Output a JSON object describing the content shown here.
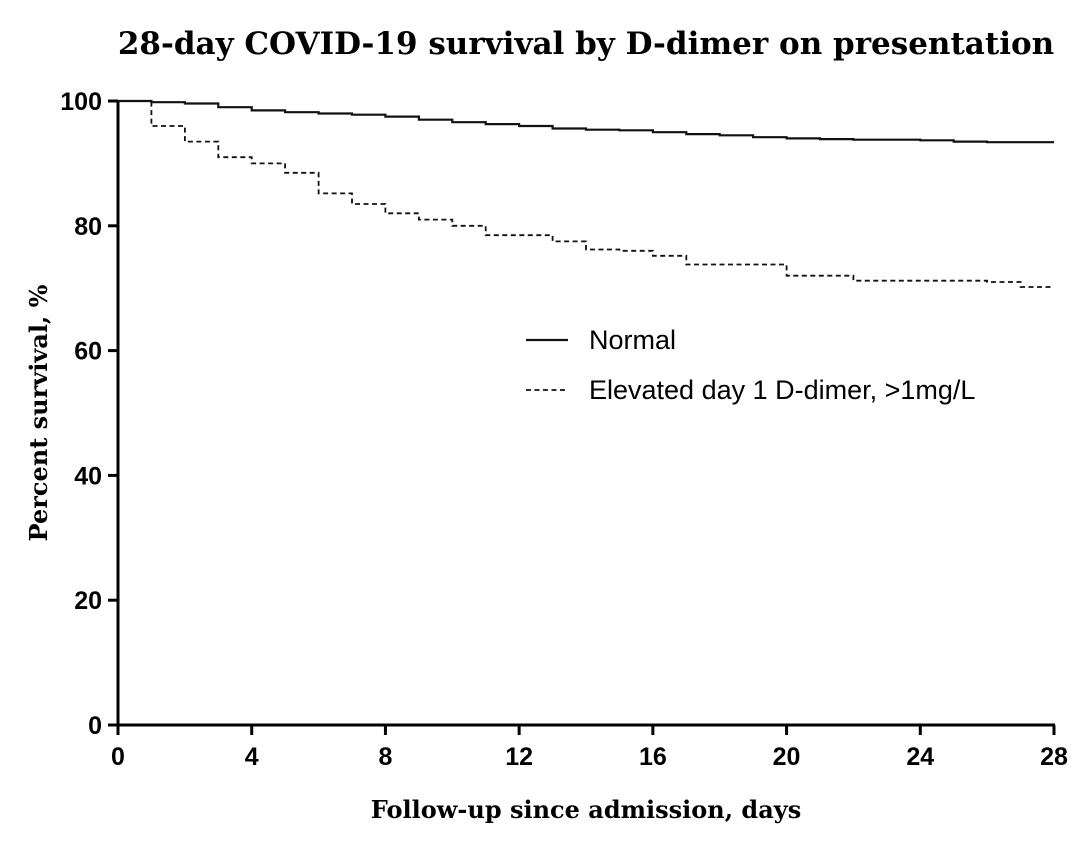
{
  "chart_data": {
    "type": "line",
    "subtype": "kaplan-meier-step",
    "title": "28-day COVID-19 survival by D-dimer on presentation",
    "xlabel": "Follow-up since admission, days",
    "ylabel": "Percent survival, %",
    "xlim": [
      0,
      28
    ],
    "ylim": [
      0,
      100
    ],
    "x_ticks": [
      0,
      4,
      8,
      12,
      16,
      20,
      24,
      28
    ],
    "y_ticks": [
      0,
      20,
      40,
      60,
      80,
      100
    ],
    "grid": false,
    "legend_position": "center-right",
    "series": [
      {
        "name": "Normal",
        "line_style": "solid",
        "color": "#111111",
        "x": [
          0,
          1,
          2,
          3,
          4,
          5,
          6,
          7,
          8,
          9,
          10,
          11,
          12,
          13,
          14,
          15,
          16,
          17,
          18,
          19,
          20,
          21,
          22,
          23,
          24,
          25,
          26,
          27,
          28
        ],
        "y": [
          100,
          99.8,
          99.6,
          99.0,
          98.5,
          98.2,
          98.0,
          97.8,
          97.5,
          97.0,
          96.6,
          96.3,
          96.0,
          95.6,
          95.4,
          95.3,
          95.0,
          94.7,
          94.5,
          94.2,
          94.0,
          93.9,
          93.8,
          93.8,
          93.7,
          93.5,
          93.4,
          93.4,
          93.4
        ]
      },
      {
        "name": "Elevated day 1 D-dimer, >1mg/L",
        "line_style": "dashed",
        "color": "#111111",
        "x": [
          0,
          1,
          2,
          3,
          4,
          5,
          6,
          7,
          8,
          9,
          10,
          11,
          12,
          13,
          14,
          15,
          16,
          17,
          18,
          19,
          20,
          21,
          22,
          23,
          24,
          25,
          26,
          27,
          28
        ],
        "y": [
          100,
          96.0,
          93.5,
          91.0,
          90.0,
          88.5,
          85.2,
          83.5,
          82.0,
          81.0,
          80.0,
          78.5,
          78.5,
          77.5,
          76.2,
          76.0,
          75.2,
          73.8,
          73.8,
          73.8,
          72.0,
          72.0,
          71.2,
          71.2,
          71.2,
          71.2,
          71.0,
          70.2,
          70.2
        ]
      }
    ]
  }
}
